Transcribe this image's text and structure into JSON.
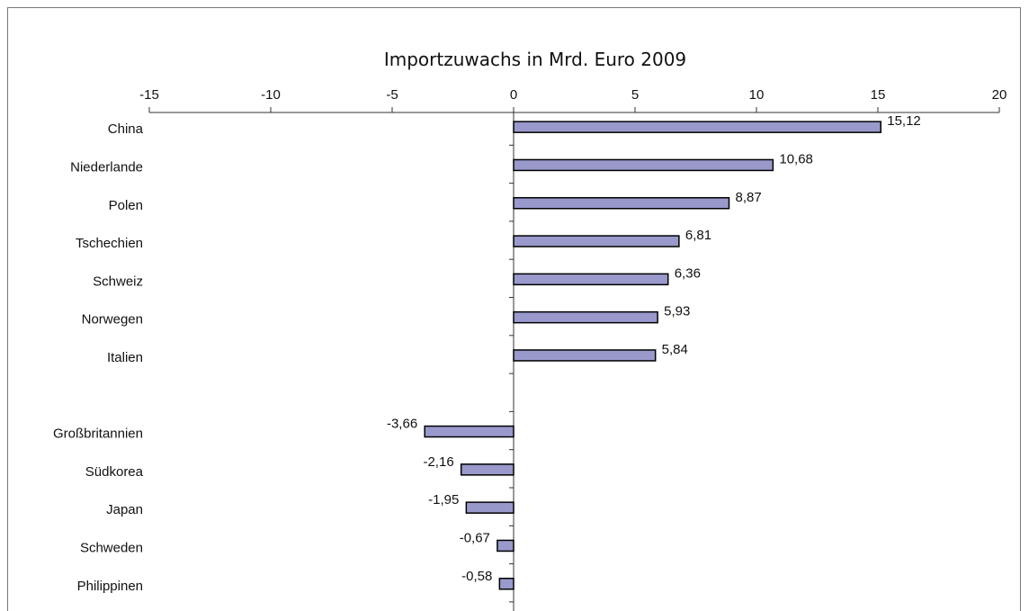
{
  "chart_data": {
    "type": "bar",
    "orientation": "horizontal",
    "title": "Importzuwachs in Mrd. Euro 2009",
    "xlabel": "",
    "ylabel": "",
    "xlim": [
      -15,
      20
    ],
    "x_ticks": [
      -15,
      -10,
      -5,
      0,
      5,
      10,
      15,
      20
    ],
    "x_tick_labels": [
      "-15",
      "-10",
      "-5",
      "0",
      "5",
      "10",
      "15",
      "20"
    ],
    "x_axis_position": "top",
    "grid": false,
    "legend": "none",
    "bar_color": "#9999cc",
    "bar_edge_color": "#000000",
    "categories": [
      "China",
      "Niederlande",
      "Polen",
      "Tschechien",
      "Schweiz",
      "Norwegen",
      "Italien",
      "",
      "Großbritannien",
      "Südkorea",
      "Japan",
      "Schweden",
      "Philippinen"
    ],
    "values": [
      15.12,
      10.68,
      8.87,
      6.81,
      6.36,
      5.93,
      5.84,
      null,
      -3.66,
      -2.16,
      -1.95,
      -0.67,
      -0.58
    ],
    "data_labels": [
      "15,12",
      "10,68",
      "8,87",
      "6,81",
      "6,36",
      "5,93",
      "5,84",
      "",
      "-3,66",
      "-2,16",
      "-1,95",
      "-0,67",
      "-0,58"
    ]
  }
}
